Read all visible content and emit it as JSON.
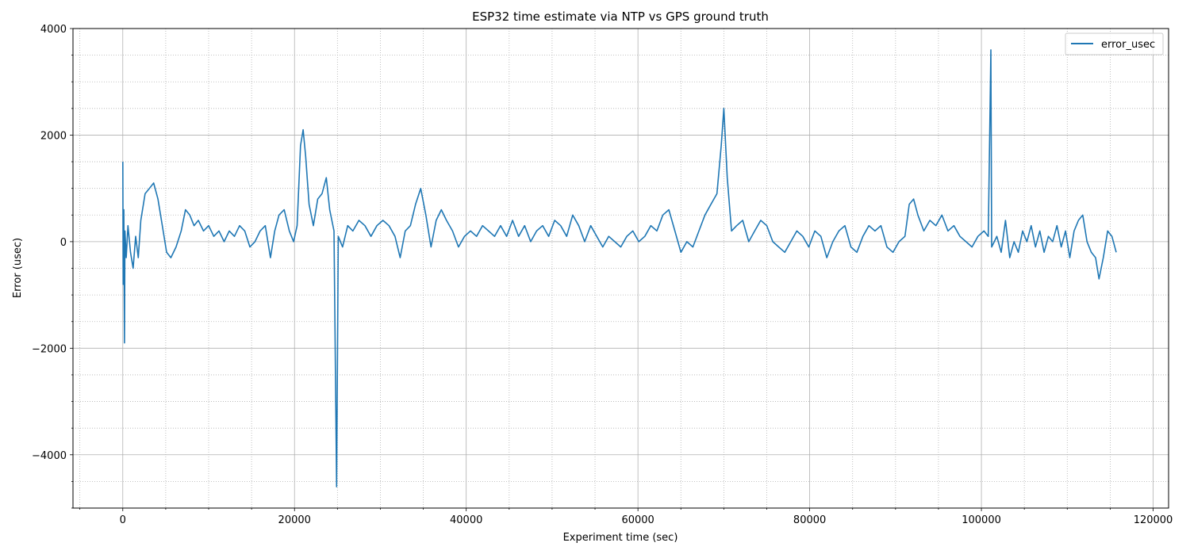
{
  "chart_data": {
    "type": "line",
    "title": "ESP32 time estimate via NTP vs GPS ground truth",
    "xlabel": "Experiment time (sec)",
    "ylabel": "Error (usec)",
    "xlim": [
      -5800,
      121800
    ],
    "ylim": [
      -5000,
      4000
    ],
    "x_ticks": [
      0,
      20000,
      40000,
      60000,
      80000,
      100000,
      120000
    ],
    "x_tick_labels": [
      "0",
      "20000",
      "40000",
      "60000",
      "80000",
      "100000",
      "120000"
    ],
    "y_ticks": [
      -4000,
      -2000,
      0,
      2000,
      4000
    ],
    "y_tick_labels": [
      "−4000",
      "−2000",
      "0",
      "2000",
      "4000"
    ],
    "grid": {
      "major": true,
      "minor": true
    },
    "legend_position": "top-right",
    "colors": {
      "series": "#1f77b4",
      "grid_major": "#b0b0b0",
      "grid_minor": "#b0b0b0"
    },
    "series": [
      {
        "name": "error_usec",
        "points": [
          [
            0,
            1500
          ],
          [
            50,
            -800
          ],
          [
            120,
            600
          ],
          [
            200,
            -1900
          ],
          [
            250,
            200
          ],
          [
            400,
            -300
          ],
          [
            600,
            300
          ],
          [
            900,
            -200
          ],
          [
            1200,
            -500
          ],
          [
            1500,
            100
          ],
          [
            1800,
            -300
          ],
          [
            2100,
            400
          ],
          [
            2600,
            900
          ],
          [
            3100,
            1000
          ],
          [
            3600,
            1100
          ],
          [
            4100,
            800
          ],
          [
            4600,
            300
          ],
          [
            5100,
            -200
          ],
          [
            5600,
            -300
          ],
          [
            6200,
            -100
          ],
          [
            6800,
            200
          ],
          [
            7300,
            600
          ],
          [
            7800,
            500
          ],
          [
            8300,
            300
          ],
          [
            8800,
            400
          ],
          [
            9400,
            200
          ],
          [
            10000,
            300
          ],
          [
            10600,
            100
          ],
          [
            11200,
            200
          ],
          [
            11800,
            0
          ],
          [
            12400,
            200
          ],
          [
            13000,
            100
          ],
          [
            13600,
            300
          ],
          [
            14200,
            200
          ],
          [
            14800,
            -100
          ],
          [
            15400,
            0
          ],
          [
            16000,
            200
          ],
          [
            16600,
            300
          ],
          [
            17200,
            -300
          ],
          [
            17700,
            200
          ],
          [
            18200,
            500
          ],
          [
            18800,
            600
          ],
          [
            19400,
            200
          ],
          [
            19900,
            0
          ],
          [
            20300,
            300
          ],
          [
            20700,
            1800
          ],
          [
            21000,
            2100
          ],
          [
            21300,
            1600
          ],
          [
            21700,
            700
          ],
          [
            22200,
            300
          ],
          [
            22700,
            800
          ],
          [
            23200,
            900
          ],
          [
            23700,
            1200
          ],
          [
            24100,
            600
          ],
          [
            24600,
            200
          ],
          [
            24900,
            -4600
          ],
          [
            25100,
            100
          ],
          [
            25600,
            -100
          ],
          [
            26200,
            300
          ],
          [
            26800,
            200
          ],
          [
            27500,
            400
          ],
          [
            28200,
            300
          ],
          [
            28900,
            100
          ],
          [
            29600,
            300
          ],
          [
            30300,
            400
          ],
          [
            31000,
            300
          ],
          [
            31700,
            100
          ],
          [
            32300,
            -300
          ],
          [
            32900,
            200
          ],
          [
            33500,
            300
          ],
          [
            34100,
            700
          ],
          [
            34700,
            1000
          ],
          [
            35300,
            500
          ],
          [
            35900,
            -100
          ],
          [
            36500,
            400
          ],
          [
            37100,
            600
          ],
          [
            37700,
            400
          ],
          [
            38400,
            200
          ],
          [
            39100,
            -100
          ],
          [
            39800,
            100
          ],
          [
            40500,
            200
          ],
          [
            41200,
            100
          ],
          [
            41900,
            300
          ],
          [
            42600,
            200
          ],
          [
            43300,
            100
          ],
          [
            44000,
            300
          ],
          [
            44700,
            100
          ],
          [
            45400,
            400
          ],
          [
            46100,
            100
          ],
          [
            46800,
            300
          ],
          [
            47500,
            0
          ],
          [
            48200,
            200
          ],
          [
            48900,
            300
          ],
          [
            49600,
            100
          ],
          [
            50300,
            400
          ],
          [
            51000,
            300
          ],
          [
            51700,
            100
          ],
          [
            52400,
            500
          ],
          [
            53100,
            300
          ],
          [
            53800,
            0
          ],
          [
            54500,
            300
          ],
          [
            55200,
            100
          ],
          [
            55900,
            -100
          ],
          [
            56600,
            100
          ],
          [
            57300,
            0
          ],
          [
            58000,
            -100
          ],
          [
            58700,
            100
          ],
          [
            59400,
            200
          ],
          [
            60100,
            0
          ],
          [
            60800,
            100
          ],
          [
            61500,
            300
          ],
          [
            62200,
            200
          ],
          [
            62900,
            500
          ],
          [
            63600,
            600
          ],
          [
            64300,
            200
          ],
          [
            65000,
            -200
          ],
          [
            65700,
            0
          ],
          [
            66400,
            -100
          ],
          [
            67100,
            200
          ],
          [
            67800,
            500
          ],
          [
            68500,
            700
          ],
          [
            69200,
            900
          ],
          [
            69700,
            1800
          ],
          [
            70000,
            2500
          ],
          [
            70400,
            1200
          ],
          [
            70900,
            200
          ],
          [
            71500,
            300
          ],
          [
            72200,
            400
          ],
          [
            72900,
            0
          ],
          [
            73600,
            200
          ],
          [
            74300,
            400
          ],
          [
            75000,
            300
          ],
          [
            75700,
            0
          ],
          [
            76400,
            -100
          ],
          [
            77100,
            -200
          ],
          [
            77800,
            0
          ],
          [
            78500,
            200
          ],
          [
            79200,
            100
          ],
          [
            79900,
            -100
          ],
          [
            80600,
            200
          ],
          [
            81300,
            100
          ],
          [
            82000,
            -300
          ],
          [
            82700,
            0
          ],
          [
            83400,
            200
          ],
          [
            84100,
            300
          ],
          [
            84800,
            -100
          ],
          [
            85500,
            -200
          ],
          [
            86200,
            100
          ],
          [
            86900,
            300
          ],
          [
            87600,
            200
          ],
          [
            88300,
            300
          ],
          [
            89000,
            -100
          ],
          [
            89700,
            -200
          ],
          [
            90400,
            0
          ],
          [
            91100,
            100
          ],
          [
            91600,
            700
          ],
          [
            92100,
            800
          ],
          [
            92600,
            500
          ],
          [
            93300,
            200
          ],
          [
            94000,
            400
          ],
          [
            94700,
            300
          ],
          [
            95400,
            500
          ],
          [
            96100,
            200
          ],
          [
            96800,
            300
          ],
          [
            97500,
            100
          ],
          [
            98200,
            0
          ],
          [
            98900,
            -100
          ],
          [
            99600,
            100
          ],
          [
            100300,
            200
          ],
          [
            100800,
            100
          ],
          [
            101100,
            3600
          ],
          [
            101200,
            -100
          ],
          [
            101500,
            0
          ],
          [
            101800,
            100
          ],
          [
            102300,
            -200
          ],
          [
            102800,
            400
          ],
          [
            103300,
            -300
          ],
          [
            103800,
            0
          ],
          [
            104300,
            -200
          ],
          [
            104800,
            200
          ],
          [
            105300,
            0
          ],
          [
            105800,
            300
          ],
          [
            106300,
            -100
          ],
          [
            106800,
            200
          ],
          [
            107300,
            -200
          ],
          [
            107800,
            100
          ],
          [
            108300,
            0
          ],
          [
            108800,
            300
          ],
          [
            109300,
            -100
          ],
          [
            109800,
            200
          ],
          [
            110300,
            -300
          ],
          [
            110800,
            200
          ],
          [
            111300,
            400
          ],
          [
            111800,
            500
          ],
          [
            112300,
            0
          ],
          [
            112800,
            -200
          ],
          [
            113300,
            -300
          ],
          [
            113700,
            -700
          ],
          [
            114200,
            -300
          ],
          [
            114700,
            200
          ],
          [
            115200,
            100
          ],
          [
            115700,
            -200
          ]
        ]
      }
    ]
  }
}
